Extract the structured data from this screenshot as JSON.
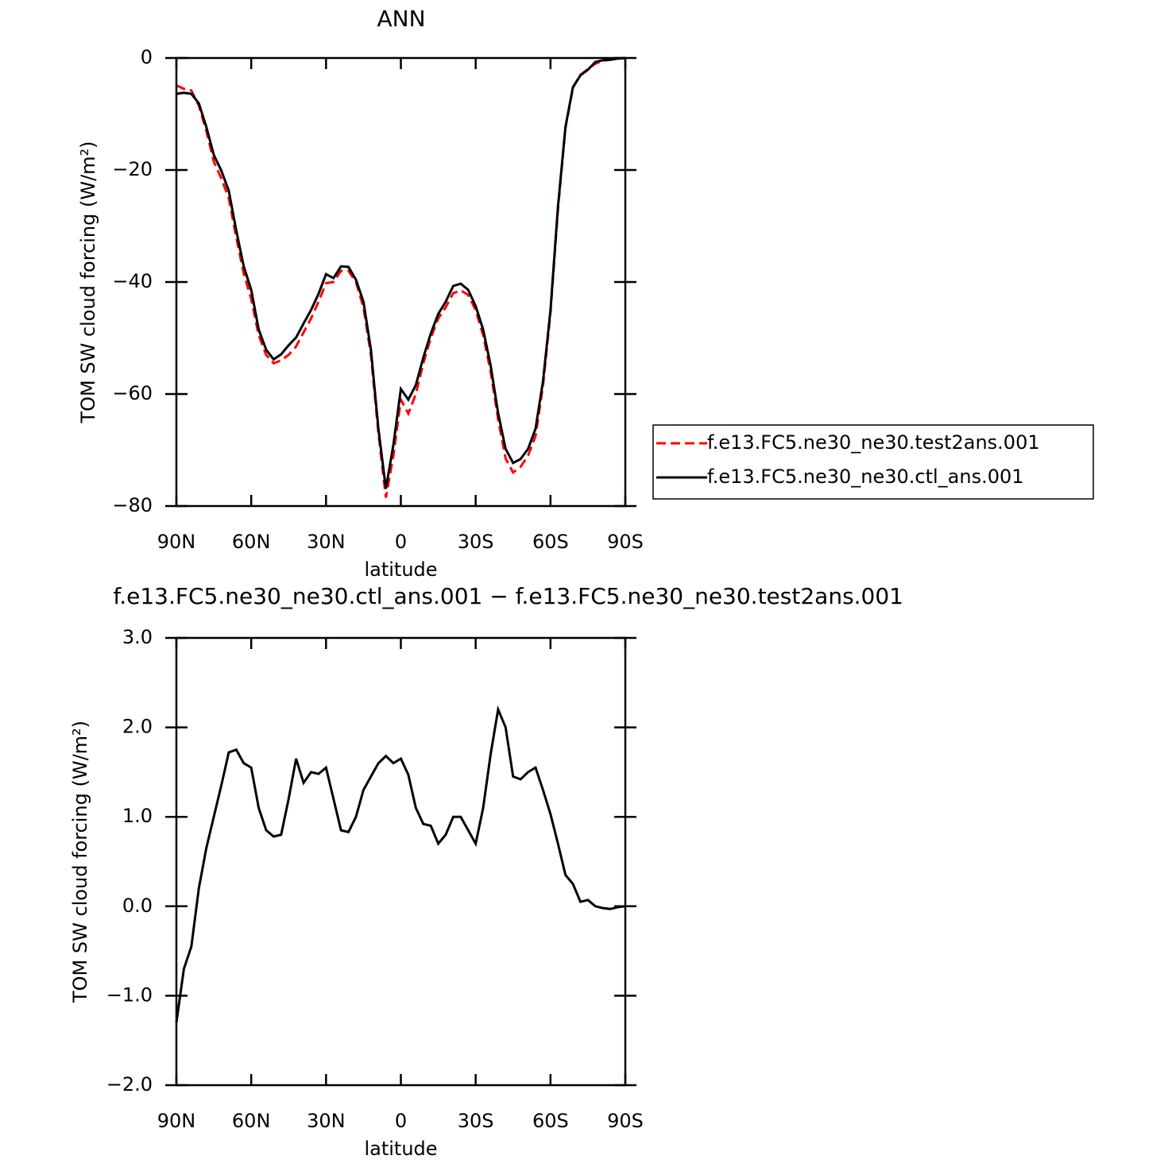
{
  "chart_data": [
    {
      "type": "line",
      "title": "ANN",
      "xlabel": "latitude",
      "ylabel": "TOM SW cloud forcing (W/m²)",
      "x": [
        90,
        87,
        84,
        81,
        78,
        75,
        72,
        69,
        66,
        63,
        60,
        57,
        54,
        51,
        48,
        45,
        42,
        39,
        36,
        33,
        30,
        27,
        24,
        21,
        18,
        15,
        12,
        9,
        6,
        3,
        0,
        -3,
        -6,
        -9,
        -12,
        -15,
        -18,
        -21,
        -24,
        -27,
        -30,
        -33,
        -36,
        -39,
        -42,
        -45,
        -48,
        -51,
        -54,
        -57,
        -60,
        -63,
        -66,
        -69,
        -72,
        -75,
        -78,
        -81,
        -84,
        -87,
        -90
      ],
      "series": [
        {
          "name": "f.e13.FC5.ne30_ne30.test2ans.001",
          "color": "#ff0000",
          "line_style": "dashed",
          "values": [
            -4.9,
            -5.5,
            -5.8,
            -8.5,
            -13,
            -18.5,
            -21.5,
            -25,
            -32,
            -38.5,
            -43,
            -49.5,
            -53,
            -54.5,
            -54,
            -53,
            -51.5,
            -49,
            -46.5,
            -43.5,
            -40.2,
            -40,
            -38,
            -38,
            -40,
            -44.5,
            -53,
            -67,
            -78.5,
            -71,
            -61,
            -63.5,
            -60,
            -54.5,
            -50,
            -46.5,
            -44.5,
            -42,
            -41.5,
            -42.3,
            -45,
            -49.5,
            -56,
            -64.5,
            -71.5,
            -74,
            -73,
            -71,
            -67.5,
            -58.5,
            -45.5,
            -27,
            -12.5,
            -5.3,
            -3,
            -2,
            -1,
            -0.5,
            -0.3,
            -0.1,
            0
          ]
        },
        {
          "name": "f.e13.FC5.ne30_ne30.ctl_ans.001",
          "color": "#000000",
          "line_style": "solid",
          "values": [
            -6.4,
            -6.2,
            -6.4,
            -8.1,
            -12.3,
            -17.3,
            -20.1,
            -23.7,
            -30.8,
            -37.2,
            -41.4,
            -48.5,
            -52.1,
            -53.8,
            -52.9,
            -51.3,
            -49.9,
            -47.4,
            -45,
            -42.1,
            -38.6,
            -39.3,
            -37.2,
            -37.3,
            -39.6,
            -43.5,
            -52.1,
            -66.2,
            -76.9,
            -69.1,
            -59.1,
            -61,
            -58.4,
            -53.5,
            -49.2,
            -45.7,
            -43.5,
            -40.7,
            -40.3,
            -41.4,
            -44.3,
            -48.5,
            -54.9,
            -63.4,
            -69.8,
            -72.3,
            -71.6,
            -69.8,
            -66.2,
            -57.7,
            -45,
            -26.5,
            -12.3,
            -5.2,
            -3.1,
            -2.1,
            -0.7,
            -0.4,
            -0.3,
            -0.1,
            0
          ]
        }
      ],
      "xlim": [
        90,
        -90
      ],
      "xticks": [
        {
          "value": 90,
          "label": "90N"
        },
        {
          "value": 60,
          "label": "60N"
        },
        {
          "value": 30,
          "label": "30N"
        },
        0,
        {
          "value": -30,
          "label": "30S"
        },
        {
          "value": -60,
          "label": "60S"
        },
        {
          "value": -90,
          "label": "90S"
        }
      ],
      "ylim": [
        -80,
        0
      ],
      "yticks": [
        0,
        {
          "value": -20,
          "label": "−20"
        },
        {
          "value": -40,
          "label": "−40"
        },
        {
          "value": -60,
          "label": "−60"
        },
        {
          "value": -80,
          "label": "−80"
        }
      ]
    },
    {
      "type": "line",
      "title": "f.e13.FC5.ne30_ne30.ctl_ans.001 − f.e13.FC5.ne30_ne30.test2ans.001",
      "xlabel": "latitude",
      "ylabel": "TOM SW cloud forcing (W/m²)",
      "x": [
        90,
        87,
        84,
        81,
        78,
        75,
        72,
        69,
        66,
        63,
        60,
        57,
        54,
        51,
        48,
        45,
        42,
        39,
        36,
        33,
        30,
        27,
        24,
        21,
        18,
        15,
        12,
        9,
        6,
        3,
        0,
        -3,
        -6,
        -9,
        -12,
        -15,
        -18,
        -21,
        -24,
        -27,
        -30,
        -33,
        -36,
        -39,
        -42,
        -45,
        -48,
        -51,
        -54,
        -57,
        -60,
        -63,
        -66,
        -69,
        -72,
        -75,
        -78,
        -81,
        -84,
        -87,
        -90
      ],
      "series": [
        {
          "color": "#000000",
          "line_style": "solid",
          "values": [
            -1.3,
            -0.7,
            -0.45,
            0.2,
            0.65,
            1.0,
            1.35,
            1.72,
            1.75,
            1.6,
            1.55,
            1.1,
            0.85,
            0.78,
            0.8,
            1.2,
            1.65,
            1.38,
            1.5,
            1.48,
            1.55,
            1.2,
            0.85,
            0.83,
            1.0,
            1.3,
            1.45,
            1.6,
            1.68,
            1.6,
            1.65,
            1.47,
            1.1,
            0.92,
            0.9,
            0.7,
            0.8,
            1.0,
            1.0,
            0.85,
            0.7,
            1.1,
            1.7,
            2.2,
            2.0,
            1.45,
            1.42,
            1.5,
            1.55,
            1.3,
            1.03,
            0.7,
            0.35,
            0.25,
            0.05,
            0.07,
            0.0,
            -0.02,
            -0.03,
            -0.01,
            0.0
          ]
        }
      ],
      "xlim": [
        90,
        -90
      ],
      "xticks": [
        {
          "value": 90,
          "label": "90N"
        },
        {
          "value": 60,
          "label": "60N"
        },
        {
          "value": 30,
          "label": "30N"
        },
        0,
        {
          "value": -30,
          "label": "30S"
        },
        {
          "value": -60,
          "label": "60S"
        },
        {
          "value": -90,
          "label": "90S"
        }
      ],
      "ylim": [
        -2,
        3
      ],
      "yticks": [
        {
          "value": 3,
          "label": "3.0"
        },
        {
          "value": 2,
          "label": "2.0"
        },
        {
          "value": 1,
          "label": "1.0"
        },
        {
          "value": 0,
          "label": "0.0"
        },
        {
          "value": -1,
          "label": "−1.0"
        },
        {
          "value": -2,
          "label": "−2.0"
        }
      ]
    }
  ]
}
